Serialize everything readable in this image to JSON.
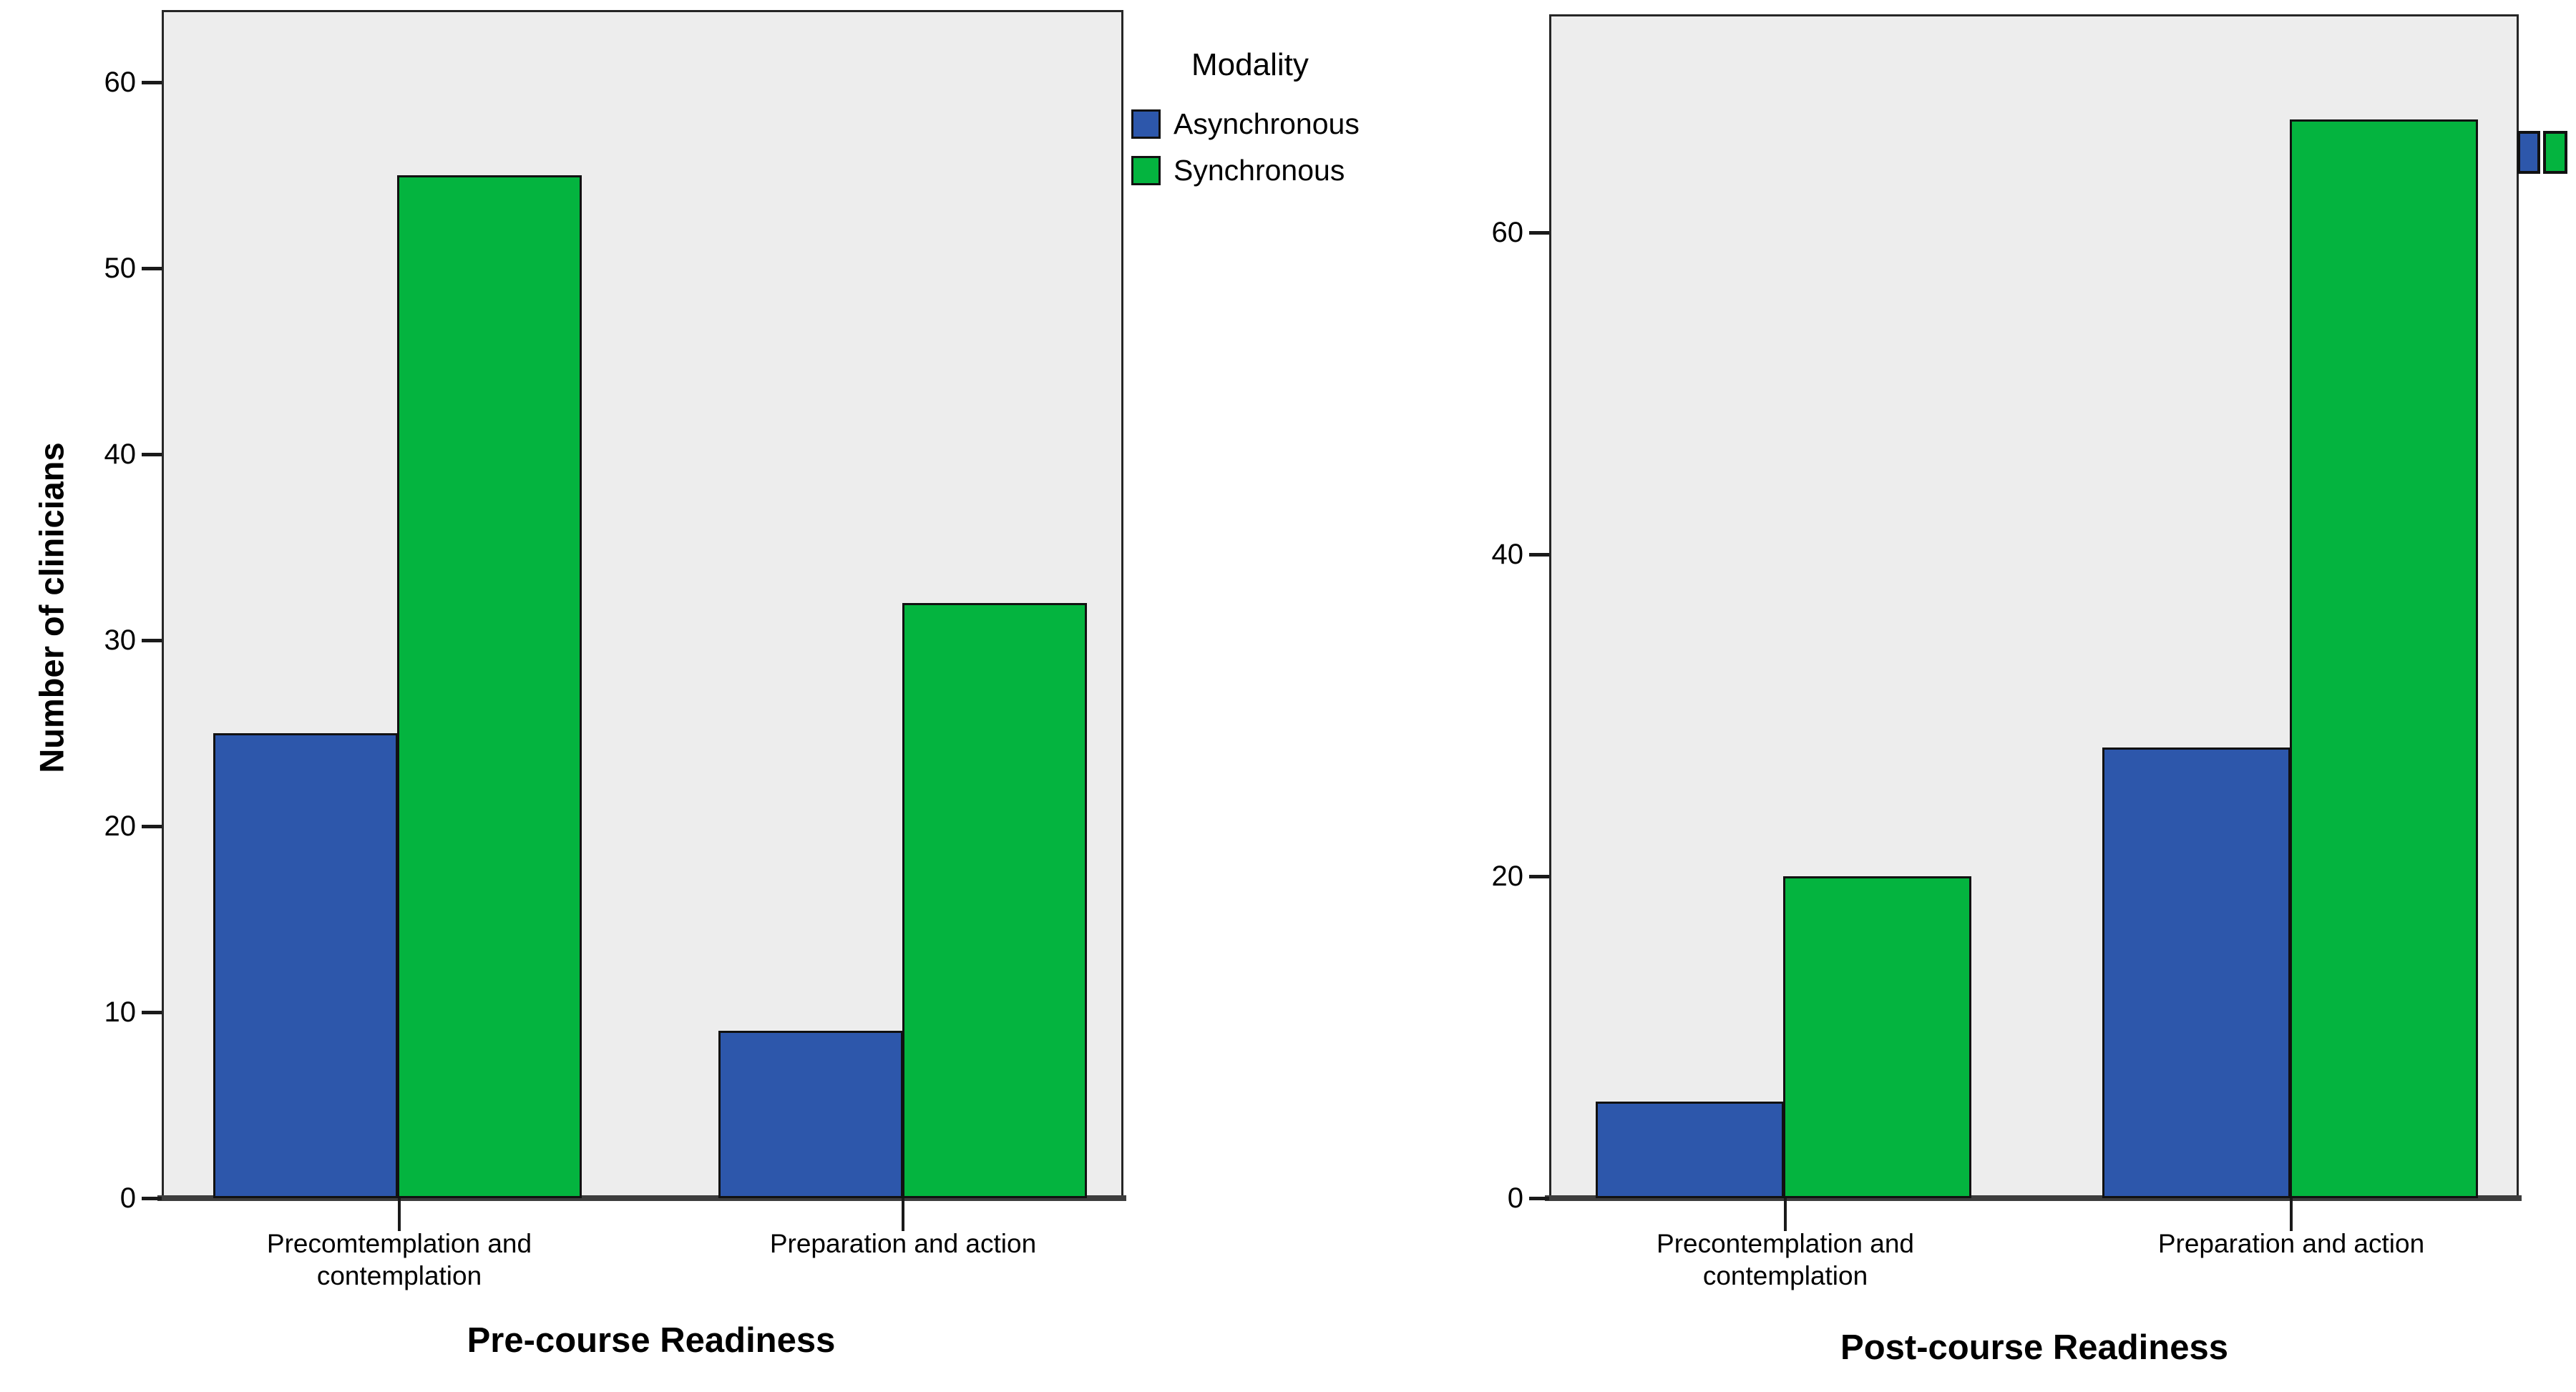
{
  "figure": {
    "background": "#ffffff",
    "plot_background": "#ededed",
    "frame_color": "#262626",
    "axis_line_color": "#3d3d3d",
    "text_color": "#000000"
  },
  "colors": {
    "asynchronous": "#2d57ab",
    "synchronous": "#04b43f"
  },
  "legend": {
    "title": "Modality",
    "items": [
      {
        "label": "Asynchronous",
        "color_key": "asynchronous"
      },
      {
        "label": "Synchronous",
        "color_key": "synchronous"
      }
    ]
  },
  "chart_data": [
    {
      "type": "bar",
      "title": "",
      "xlabel": "Pre-course Readiness",
      "ylabel": "Number of clinicians",
      "categories": [
        "Precomtemplation and contemplation",
        "Preparation and action"
      ],
      "category_label_lines": [
        [
          "Precomtemplation and",
          "contemplation"
        ],
        [
          "Preparation and action"
        ]
      ],
      "series": [
        {
          "name": "Asynchronous",
          "values": [
            25,
            9
          ]
        },
        {
          "name": "Synchronous",
          "values": [
            55,
            32
          ]
        }
      ],
      "yticks": [
        0,
        10,
        20,
        30,
        40,
        50,
        60
      ],
      "ylim": [
        0,
        64
      ],
      "grid": false,
      "legend_position": "outside-top-right"
    },
    {
      "type": "bar",
      "title": "",
      "xlabel": "Post-course Readiness",
      "ylabel": "",
      "categories": [
        "Precontemplation and contemplation",
        "Preparation and action"
      ],
      "category_label_lines": [
        [
          "Precontemplation and",
          "contemplation"
        ],
        [
          "Preparation and action"
        ]
      ],
      "series": [
        {
          "name": "Asynchronous",
          "values": [
            6,
            28
          ]
        },
        {
          "name": "Synchronous",
          "values": [
            20,
            67
          ]
        }
      ],
      "yticks": [
        0,
        20,
        40,
        60
      ],
      "ylim": [
        0,
        73.5
      ],
      "grid": false,
      "legend_position": "cropped-right-edge"
    }
  ]
}
